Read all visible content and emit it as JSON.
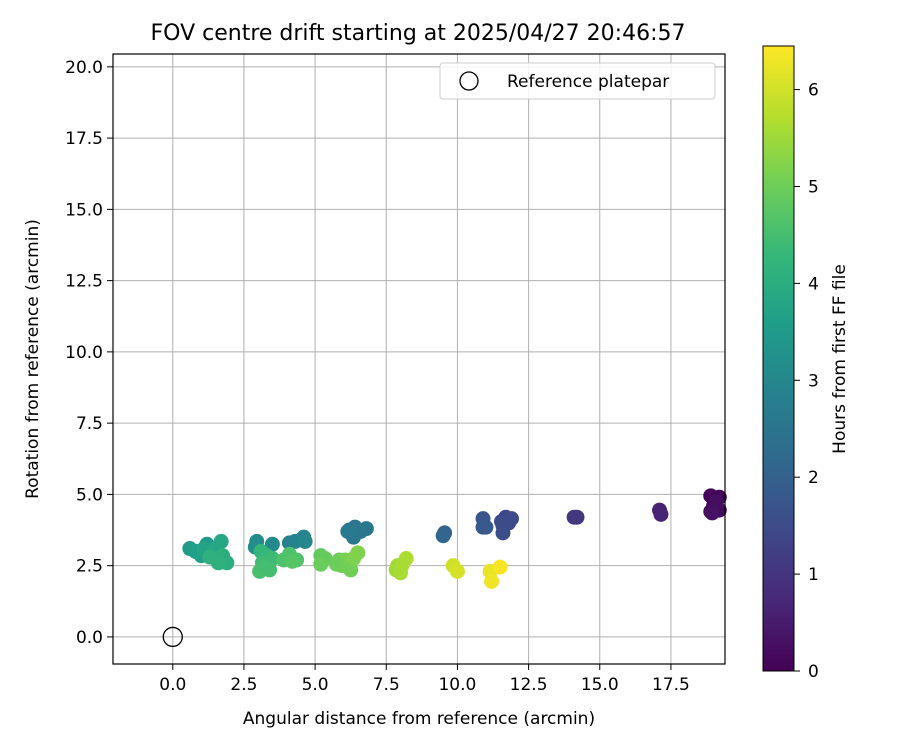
{
  "chart_data": {
    "type": "scatter",
    "title": "FOV centre drift starting at 2025/04/27 20:46:57",
    "xlabel": "Angular distance from reference (arcmin)",
    "ylabel": "Rotation from reference (arcmin)",
    "xlim": [
      -2.1,
      19.4
    ],
    "ylim": [
      -0.95,
      20.45
    ],
    "xticks": [
      "0.0",
      "2.5",
      "5.0",
      "7.5",
      "10.0",
      "12.5",
      "15.0",
      "17.5"
    ],
    "yticks": [
      "0.0",
      "2.5",
      "5.0",
      "7.5",
      "10.0",
      "12.5",
      "15.0",
      "17.5",
      "20.0"
    ],
    "grid": true,
    "legend": {
      "position": "top-right",
      "label": "Reference platepar"
    },
    "reference_point": {
      "x": 0.0,
      "y": 0.0
    },
    "colorbar": {
      "label": "Hours from first FF file",
      "range": [
        0,
        6.45
      ],
      "ticks": [
        "0",
        "1",
        "2",
        "3",
        "4",
        "5",
        "6"
      ],
      "colormap": [
        "#440154",
        "#482878",
        "#3e4989",
        "#31688e",
        "#26828e",
        "#1f9e89",
        "#35b779",
        "#6ece58",
        "#b5de2b",
        "#fde725"
      ]
    },
    "points": [
      {
        "x": 19.2,
        "y": 4.9,
        "t": 0.0
      },
      {
        "x": 18.9,
        "y": 4.95,
        "t": 0.05
      },
      {
        "x": 19.0,
        "y": 4.6,
        "t": 0.1
      },
      {
        "x": 18.9,
        "y": 4.4,
        "t": 0.15
      },
      {
        "x": 19.2,
        "y": 4.45,
        "t": 0.2
      },
      {
        "x": 19.1,
        "y": 4.75,
        "t": 0.25
      },
      {
        "x": 18.95,
        "y": 4.35,
        "t": 0.3
      },
      {
        "x": 17.1,
        "y": 4.45,
        "t": 0.6
      },
      {
        "x": 17.15,
        "y": 4.3,
        "t": 0.65
      },
      {
        "x": 14.2,
        "y": 4.2,
        "t": 1.0
      },
      {
        "x": 14.1,
        "y": 4.2,
        "t": 1.05
      },
      {
        "x": 11.7,
        "y": 4.2,
        "t": 1.4
      },
      {
        "x": 11.9,
        "y": 4.15,
        "t": 1.45
      },
      {
        "x": 11.6,
        "y": 3.9,
        "t": 1.5
      },
      {
        "x": 11.8,
        "y": 4.0,
        "t": 1.45
      },
      {
        "x": 11.6,
        "y": 3.65,
        "t": 1.55
      },
      {
        "x": 11.55,
        "y": 4.05,
        "t": 1.5
      },
      {
        "x": 10.9,
        "y": 4.15,
        "t": 1.7
      },
      {
        "x": 10.9,
        "y": 3.85,
        "t": 1.75
      },
      {
        "x": 11.0,
        "y": 3.85,
        "t": 1.8
      },
      {
        "x": 9.55,
        "y": 3.65,
        "t": 2.05
      },
      {
        "x": 9.5,
        "y": 3.55,
        "t": 2.1
      },
      {
        "x": 6.2,
        "y": 3.75,
        "t": 2.5
      },
      {
        "x": 6.4,
        "y": 3.85,
        "t": 2.55
      },
      {
        "x": 6.45,
        "y": 3.8,
        "t": 2.5
      },
      {
        "x": 6.8,
        "y": 3.8,
        "t": 2.6
      },
      {
        "x": 6.35,
        "y": 3.5,
        "t": 2.6
      },
      {
        "x": 6.6,
        "y": 3.7,
        "t": 2.55
      },
      {
        "x": 6.15,
        "y": 3.7,
        "t": 2.65
      },
      {
        "x": 4.1,
        "y": 3.3,
        "t": 2.85
      },
      {
        "x": 4.3,
        "y": 3.35,
        "t": 2.9
      },
      {
        "x": 4.6,
        "y": 3.5,
        "t": 2.95
      },
      {
        "x": 4.65,
        "y": 3.35,
        "t": 3.0
      },
      {
        "x": 3.5,
        "y": 3.25,
        "t": 3.05
      },
      {
        "x": 2.95,
        "y": 3.35,
        "t": 3.1
      },
      {
        "x": 2.9,
        "y": 3.15,
        "t": 3.15
      },
      {
        "x": 1.2,
        "y": 3.25,
        "t": 3.5
      },
      {
        "x": 0.6,
        "y": 3.1,
        "t": 3.55
      },
      {
        "x": 0.8,
        "y": 3.0,
        "t": 3.6
      },
      {
        "x": 1.0,
        "y": 2.85,
        "t": 3.65
      },
      {
        "x": 1.3,
        "y": 2.9,
        "t": 3.7
      },
      {
        "x": 1.1,
        "y": 3.1,
        "t": 3.75
      },
      {
        "x": 1.5,
        "y": 3.1,
        "t": 3.8
      },
      {
        "x": 1.7,
        "y": 3.35,
        "t": 3.85
      },
      {
        "x": 1.5,
        "y": 2.75,
        "t": 3.9
      },
      {
        "x": 1.9,
        "y": 2.6,
        "t": 4.0
      },
      {
        "x": 1.75,
        "y": 2.85,
        "t": 4.05
      },
      {
        "x": 1.6,
        "y": 2.6,
        "t": 4.1
      },
      {
        "x": 1.3,
        "y": 2.8,
        "t": 4.1
      },
      {
        "x": 3.1,
        "y": 3.0,
        "t": 4.25
      },
      {
        "x": 3.3,
        "y": 2.85,
        "t": 4.3
      },
      {
        "x": 3.4,
        "y": 2.65,
        "t": 4.35
      },
      {
        "x": 3.15,
        "y": 2.6,
        "t": 4.4
      },
      {
        "x": 3.5,
        "y": 2.75,
        "t": 4.4
      },
      {
        "x": 3.4,
        "y": 2.35,
        "t": 4.5
      },
      {
        "x": 3.05,
        "y": 2.3,
        "t": 4.55
      },
      {
        "x": 3.2,
        "y": 2.45,
        "t": 4.5
      },
      {
        "x": 3.9,
        "y": 2.7,
        "t": 4.6
      },
      {
        "x": 4.1,
        "y": 2.9,
        "t": 4.6
      },
      {
        "x": 4.35,
        "y": 2.7,
        "t": 4.65
      },
      {
        "x": 4.2,
        "y": 2.65,
        "t": 4.7
      },
      {
        "x": 5.2,
        "y": 2.85,
        "t": 4.85
      },
      {
        "x": 5.35,
        "y": 2.75,
        "t": 4.9
      },
      {
        "x": 5.2,
        "y": 2.55,
        "t": 4.95
      },
      {
        "x": 5.85,
        "y": 2.7,
        "t": 5.0
      },
      {
        "x": 5.95,
        "y": 2.5,
        "t": 5.05
      },
      {
        "x": 6.05,
        "y": 2.7,
        "t": 5.1
      },
      {
        "x": 6.2,
        "y": 2.5,
        "t": 5.1
      },
      {
        "x": 6.25,
        "y": 2.35,
        "t": 5.05
      },
      {
        "x": 6.35,
        "y": 2.75,
        "t": 5.15
      },
      {
        "x": 6.5,
        "y": 2.95,
        "t": 5.2
      },
      {
        "x": 5.75,
        "y": 2.55,
        "t": 5.0
      },
      {
        "x": 7.85,
        "y": 2.35,
        "t": 5.5
      },
      {
        "x": 7.9,
        "y": 2.5,
        "t": 5.55
      },
      {
        "x": 8.0,
        "y": 2.25,
        "t": 5.6
      },
      {
        "x": 8.2,
        "y": 2.75,
        "t": 5.65
      },
      {
        "x": 8.05,
        "y": 2.5,
        "t": 5.6
      },
      {
        "x": 9.85,
        "y": 2.5,
        "t": 6.0
      },
      {
        "x": 10.0,
        "y": 2.3,
        "t": 6.05
      },
      {
        "x": 11.15,
        "y": 2.3,
        "t": 6.25
      },
      {
        "x": 11.2,
        "y": 1.95,
        "t": 6.3
      },
      {
        "x": 11.5,
        "y": 2.45,
        "t": 6.4
      }
    ]
  }
}
